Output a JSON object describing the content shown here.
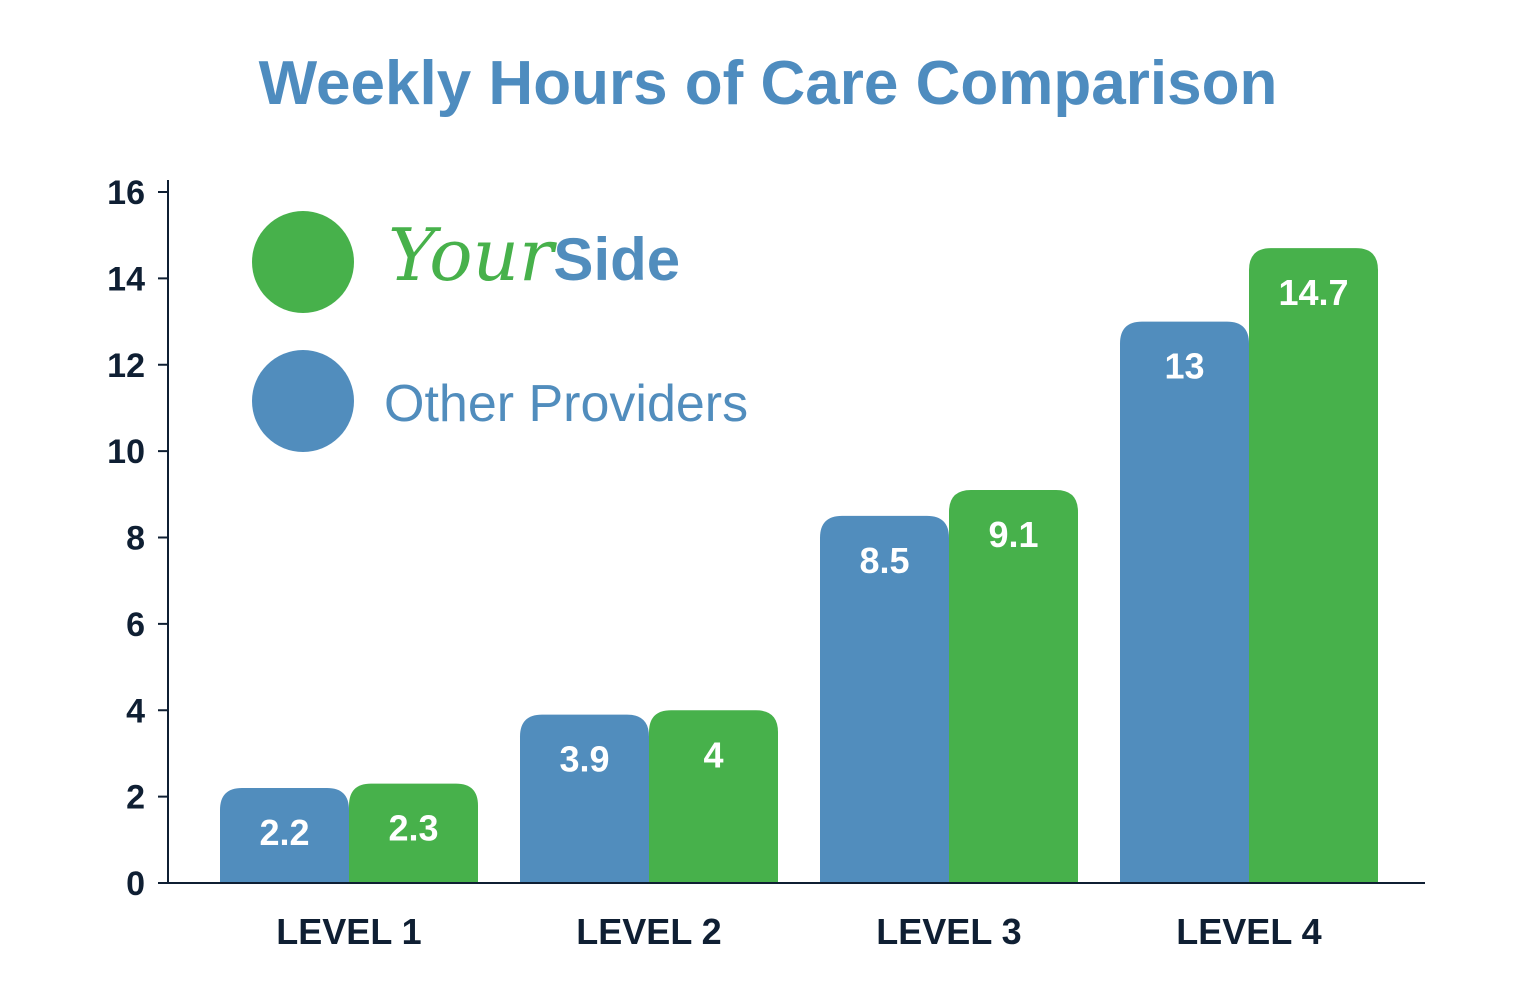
{
  "chart_data": {
    "type": "bar",
    "title": "Weekly Hours of Care Comparison",
    "xlabel": "",
    "ylabel": "",
    "ylim": [
      0,
      16
    ],
    "yticks": [
      0,
      2,
      4,
      6,
      8,
      10,
      12,
      14,
      16
    ],
    "categories": [
      "LEVEL 1",
      "LEVEL 2",
      "LEVEL 3",
      "LEVEL 4"
    ],
    "series": [
      {
        "name": "Other Providers",
        "color": "#518dbd",
        "values": [
          2.2,
          3.9,
          8.5,
          13
        ]
      },
      {
        "name": "YourSide",
        "color": "#47b14b",
        "values": [
          2.3,
          4,
          9.1,
          14.7
        ]
      }
    ],
    "legend": {
      "placement": "top-left",
      "brand_script": "Your",
      "brand_bold": "Side",
      "other": "Other Providers"
    },
    "grid": false,
    "colors": {
      "title": "#4e8cbf",
      "axis": "#0f1f33",
      "yourside": "#47b14b",
      "other": "#518dbd"
    }
  }
}
